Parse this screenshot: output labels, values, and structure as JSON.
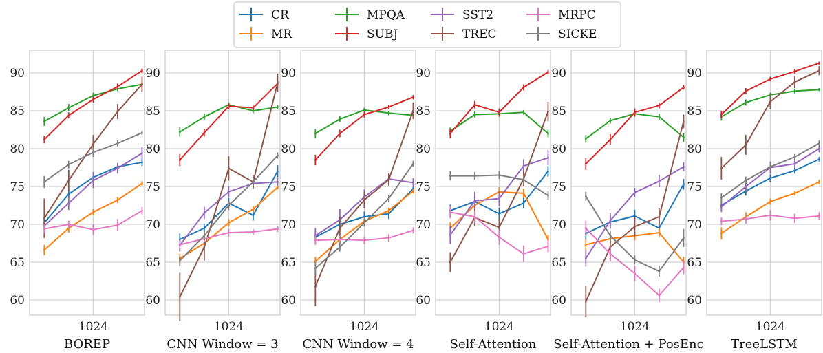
{
  "chart_data": {
    "type": "line",
    "shared_yticks": [
      60,
      65,
      70,
      75,
      80,
      85,
      90
    ],
    "ylim": [
      58,
      93
    ],
    "x_positions": [
      1,
      2,
      3,
      4,
      5
    ],
    "xtick_label": "1024",
    "xtick_at": 3,
    "grid": true,
    "legend_placement": "top-center",
    "legend": [
      {
        "name": "CR",
        "color": "#1f77b4"
      },
      {
        "name": "MR",
        "color": "#ff7f0e"
      },
      {
        "name": "MPQA",
        "color": "#2ca02c"
      },
      {
        "name": "SUBJ",
        "color": "#d62728"
      },
      {
        "name": "SST2",
        "color": "#9467bd"
      },
      {
        "name": "TREC",
        "color": "#8c564b"
      },
      {
        "name": "MRPC",
        "color": "#e377c2"
      },
      {
        "name": "SICKE",
        "color": "#7f7f7f"
      }
    ],
    "panels": [
      {
        "title": "BOREP",
        "series": [
          {
            "name": "CR",
            "values": [
              70.2,
              74.0,
              76.2,
              77.6,
              78.2
            ],
            "err": [
              0.7,
              0.6,
              0.7,
              0.5,
              0.5
            ]
          },
          {
            "name": "MR",
            "values": [
              66.6,
              69.5,
              71.6,
              73.2,
              75.4
            ],
            "err": [
              0.7,
              0.6,
              0.4,
              0.4,
              0.3
            ]
          },
          {
            "name": "MPQA",
            "values": [
              83.6,
              85.4,
              87.0,
              87.9,
              88.5
            ],
            "err": [
              0.6,
              0.5,
              0.4,
              0.3,
              0.3
            ]
          },
          {
            "name": "SUBJ",
            "values": [
              81.2,
              84.4,
              86.5,
              88.2,
              90.3
            ],
            "err": [
              0.5,
              0.4,
              0.4,
              0.4,
              0.3
            ]
          },
          {
            "name": "SST2",
            "values": [
              69.8,
              72.8,
              75.8,
              77.4,
              79.4
            ],
            "err": [
              0.8,
              0.9,
              1.0,
              0.7,
              0.8
            ]
          },
          {
            "name": "TREC",
            "values": [
              70.8,
              75.8,
              80.6,
              84.9,
              88.5
            ],
            "err": [
              2.6,
              1.4,
              1.2,
              1.0,
              1.0
            ]
          },
          {
            "name": "MRPC",
            "values": [
              69.4,
              70.0,
              69.3,
              69.9,
              71.8
            ],
            "err": [
              0.6,
              0.5,
              0.7,
              0.8,
              0.5
            ]
          },
          {
            "name": "SICKE",
            "values": [
              75.6,
              77.9,
              79.5,
              80.7,
              82.1
            ],
            "err": [
              0.8,
              0.5,
              0.6,
              0.4,
              0.3
            ]
          }
        ]
      },
      {
        "title": "CNN Window = 3",
        "series": [
          {
            "name": "CR",
            "values": [
              68.0,
              69.5,
              72.8,
              71.2,
              77.0
            ],
            "err": [
              0.8,
              0.6,
              0.7,
              0.7,
              0.8
            ]
          },
          {
            "name": "MR",
            "values": [
              65.5,
              67.5,
              70.2,
              72.0,
              74.9
            ],
            "err": [
              0.6,
              0.5,
              0.5,
              0.4,
              0.3
            ]
          },
          {
            "name": "MPQA",
            "values": [
              82.2,
              84.2,
              85.8,
              85.0,
              85.5
            ],
            "err": [
              0.6,
              0.4,
              0.3,
              0.3,
              0.3
            ]
          },
          {
            "name": "SUBJ",
            "values": [
              78.5,
              82.1,
              85.6,
              85.4,
              88.6
            ],
            "err": [
              0.8,
              0.5,
              0.4,
              0.3,
              0.4
            ]
          },
          {
            "name": "SST2",
            "values": [
              67.2,
              71.5,
              74.3,
              75.4,
              75.6
            ],
            "err": [
              0.8,
              0.8,
              0.7,
              0.5,
              0.5
            ]
          },
          {
            "name": "TREC",
            "values": [
              60.4,
              67.0,
              77.4,
              75.6,
              88.7
            ],
            "err": [
              3.2,
              1.8,
              1.6,
              0.9,
              1.2
            ]
          },
          {
            "name": "MRPC",
            "values": [
              67.3,
              68.1,
              68.9,
              69.0,
              69.4
            ],
            "err": [
              0.5,
              0.4,
              0.5,
              0.4,
              0.4
            ]
          },
          {
            "name": "SICKE",
            "values": [
              65.2,
              68.5,
              72.5,
              75.6,
              79.1
            ],
            "err": [
              0.7,
              0.6,
              0.6,
              0.5,
              0.4
            ]
          }
        ]
      },
      {
        "title": "CNN Window = 4",
        "series": [
          {
            "name": "CR",
            "values": [
              68.3,
              70.0,
              71.0,
              71.4,
              74.7
            ],
            "err": [
              0.8,
              0.7,
              0.7,
              0.7,
              0.5
            ]
          },
          {
            "name": "MR",
            "values": [
              65.1,
              68.0,
              70.4,
              71.8,
              74.4
            ],
            "err": [
              0.6,
              0.5,
              0.5,
              0.4,
              0.3
            ]
          },
          {
            "name": "MPQA",
            "values": [
              82.0,
              83.9,
              85.1,
              84.7,
              84.4
            ],
            "err": [
              0.6,
              0.4,
              0.3,
              0.3,
              0.4
            ]
          },
          {
            "name": "SUBJ",
            "values": [
              78.5,
              82.0,
              84.5,
              85.5,
              86.8
            ],
            "err": [
              0.7,
              0.5,
              0.4,
              0.3,
              0.3
            ]
          },
          {
            "name": "SST2",
            "values": [
              68.5,
              70.6,
              73.6,
              76.0,
              75.5
            ],
            "err": [
              1.0,
              1.4,
              1.0,
              0.7,
              0.6
            ]
          },
          {
            "name": "TREC",
            "values": [
              61.8,
              69.5,
              73.2,
              75.9,
              85.0
            ],
            "err": [
              2.6,
              1.5,
              1.1,
              0.8,
              1.1
            ]
          },
          {
            "name": "MRPC",
            "values": [
              67.9,
              68.0,
              67.9,
              68.2,
              69.2
            ],
            "err": [
              0.6,
              0.5,
              0.5,
              0.5,
              0.4
            ]
          },
          {
            "name": "SICKE",
            "values": [
              64.2,
              67.0,
              70.2,
              73.4,
              78.0
            ],
            "err": [
              0.8,
              0.6,
              0.5,
              0.5,
              0.4
            ]
          }
        ]
      },
      {
        "title": "Self-Attention",
        "series": [
          {
            "name": "CR",
            "values": [
              71.8,
              73.0,
              71.4,
              72.8,
              77.0
            ],
            "err": [
              0.8,
              0.7,
              0.8,
              0.7,
              0.7
            ]
          },
          {
            "name": "MR",
            "values": [
              69.5,
              72.5,
              74.3,
              74.1,
              68.0
            ],
            "err": [
              0.8,
              0.7,
              0.6,
              0.6,
              0.6
            ]
          },
          {
            "name": "MPQA",
            "values": [
              82.3,
              84.5,
              84.6,
              84.8,
              82.0
            ],
            "err": [
              0.5,
              0.4,
              0.4,
              0.3,
              0.5
            ]
          },
          {
            "name": "SUBJ",
            "values": [
              82.0,
              85.8,
              84.8,
              88.1,
              90.1
            ],
            "err": [
              0.6,
              0.5,
              0.5,
              0.4,
              0.3
            ]
          },
          {
            "name": "SST2",
            "values": [
              68.6,
              73.1,
              73.4,
              77.7,
              78.8
            ],
            "err": [
              1.2,
              1.2,
              1.0,
              0.9,
              1.0
            ]
          },
          {
            "name": "TREC",
            "values": [
              65.0,
              70.9,
              69.6,
              76.0,
              84.9
            ],
            "err": [
              1.3,
              1.1,
              1.2,
              1.0,
              1.3
            ]
          },
          {
            "name": "MRPC",
            "values": [
              71.6,
              71.0,
              68.3,
              66.1,
              67.1
            ],
            "err": [
              0.8,
              0.8,
              1.0,
              1.1,
              0.8
            ]
          },
          {
            "name": "SICKE",
            "values": [
              76.4,
              76.4,
              76.5,
              75.9,
              73.8
            ],
            "err": [
              0.6,
              0.5,
              0.5,
              0.5,
              0.6
            ]
          }
        ]
      },
      {
        "title": "Self-Attention + PosEnc",
        "series": [
          {
            "name": "CR",
            "values": [
              68.8,
              70.3,
              71.1,
              69.5,
              75.3
            ],
            "err": [
              0.8,
              0.9,
              0.8,
              0.8,
              0.7
            ]
          },
          {
            "name": "MR",
            "values": [
              67.3,
              68.1,
              68.5,
              68.9,
              65.0
            ],
            "err": [
              0.7,
              0.6,
              0.6,
              0.6,
              0.7
            ]
          },
          {
            "name": "MPQA",
            "values": [
              81.3,
              83.7,
              84.6,
              84.2,
              81.5
            ],
            "err": [
              0.5,
              0.4,
              0.4,
              0.4,
              0.6
            ]
          },
          {
            "name": "SUBJ",
            "values": [
              78.0,
              81.2,
              84.8,
              85.7,
              88.1
            ],
            "err": [
              0.8,
              0.7,
              0.5,
              0.4,
              0.3
            ]
          },
          {
            "name": "SST2",
            "values": [
              65.5,
              70.5,
              74.2,
              75.7,
              77.6
            ],
            "err": [
              1.1,
              1.0,
              0.6,
              0.8,
              0.6
            ]
          },
          {
            "name": "TREC",
            "values": [
              59.8,
              67.0,
              69.7,
              71.0,
              83.6
            ],
            "err": [
              2.1,
              1.6,
              1.3,
              1.1,
              0.9
            ]
          },
          {
            "name": "MRPC",
            "values": [
              69.5,
              66.1,
              63.5,
              60.6,
              64.3
            ],
            "err": [
              1.0,
              1.0,
              1.0,
              0.9,
              0.9
            ]
          },
          {
            "name": "SICKE",
            "values": [
              73.7,
              68.5,
              65.3,
              63.8,
              68.2
            ],
            "err": [
              0.6,
              0.6,
              0.6,
              0.7,
              1.2
            ]
          }
        ]
      },
      {
        "title": "TreeLSTM",
        "series": [
          {
            "name": "CR",
            "values": [
              72.5,
              74.4,
              76.1,
              77.1,
              78.6
            ],
            "err": [
              0.7,
              0.6,
              0.5,
              0.4,
              0.3
            ]
          },
          {
            "name": "MR",
            "values": [
              68.8,
              71.0,
              73.0,
              74.1,
              75.6
            ],
            "err": [
              0.8,
              0.6,
              0.4,
              0.3,
              0.3
            ]
          },
          {
            "name": "MPQA",
            "values": [
              84.2,
              86.1,
              87.1,
              87.6,
              87.8
            ],
            "err": [
              0.5,
              0.4,
              0.3,
              0.3,
              0.2
            ]
          },
          {
            "name": "SUBJ",
            "values": [
              84.5,
              87.6,
              89.2,
              90.2,
              91.3
            ],
            "err": [
              0.5,
              0.4,
              0.3,
              0.3,
              0.2
            ]
          },
          {
            "name": "SST2",
            "values": [
              72.3,
              75.0,
              77.5,
              78.0,
              80.0
            ],
            "err": [
              0.7,
              0.7,
              0.8,
              0.6,
              0.5
            ]
          },
          {
            "name": "TREC",
            "values": [
              77.4,
              80.5,
              86.2,
              88.8,
              90.3
            ],
            "err": [
              1.5,
              1.3,
              1.0,
              0.8,
              0.6
            ]
          },
          {
            "name": "MRPC",
            "values": [
              70.4,
              70.7,
              71.2,
              70.8,
              71.1
            ],
            "err": [
              0.5,
              0.6,
              0.7,
              0.6,
              0.5
            ]
          },
          {
            "name": "SICKE",
            "values": [
              73.5,
              75.8,
              77.6,
              78.9,
              80.7
            ],
            "err": [
              0.6,
              0.5,
              0.5,
              0.4,
              0.4
            ]
          }
        ]
      }
    ]
  }
}
